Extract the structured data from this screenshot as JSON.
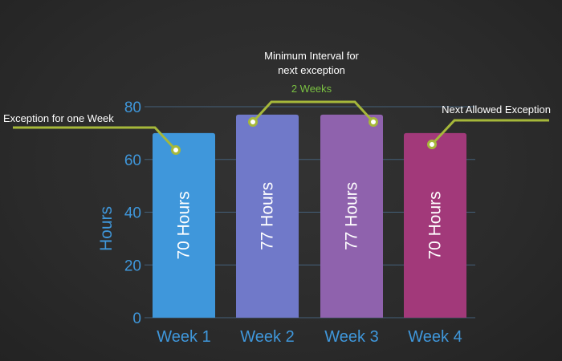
{
  "chart_data": {
    "type": "bar",
    "title": "",
    "xlabel": "",
    "ylabel": "Hours",
    "ylim": [
      0,
      80
    ],
    "yticks": [
      0,
      20,
      40,
      60,
      80
    ],
    "grid": true,
    "categories": [
      "Week 1",
      "Week 2",
      "Week 3",
      "Week 4"
    ],
    "values": [
      70,
      77,
      77,
      70
    ],
    "bar_labels": [
      "70 Hours",
      "77 Hours",
      "77 Hours",
      "70 Hours"
    ],
    "bar_colors": [
      "#3f97db",
      "#7079c9",
      "#8f62ad",
      "#a2397a"
    ],
    "annotations": {
      "exception": "Exception for one Week",
      "interval_line1": "Minimum Interval for",
      "interval_line2": "next exception",
      "interval_value": "2 Weeks",
      "next_allowed": "Next Allowed Exception"
    }
  },
  "colors": {
    "axis_text": "#3f97db",
    "grid": "#44607a",
    "callout": "#a6b83a",
    "callout_text": "#ffffff",
    "interval_value": "#7ac142",
    "bar_text": "#ffffff"
  }
}
